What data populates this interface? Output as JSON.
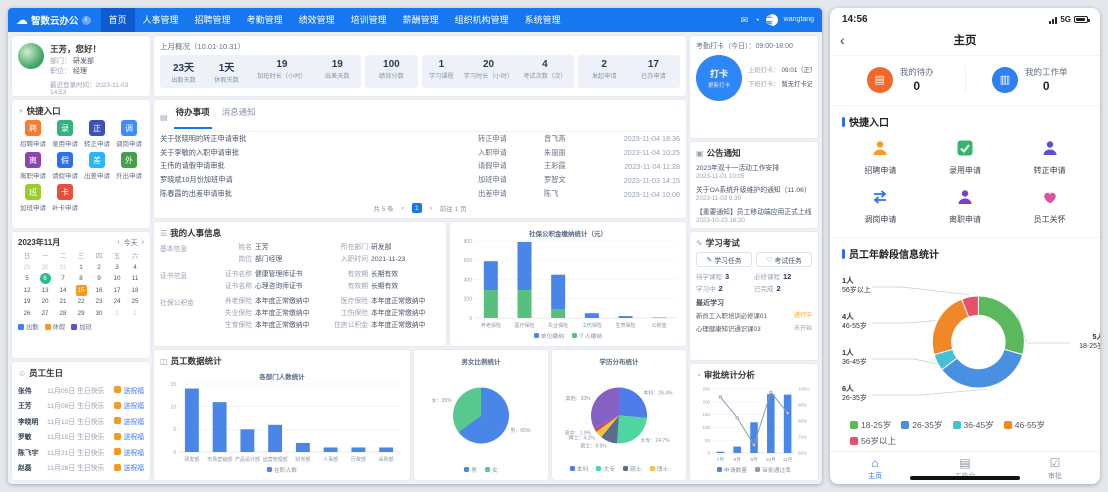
{
  "desktop": {
    "navbar": {
      "logo_icon": "☁",
      "logo_text": "智数云办公",
      "logo_badge": "i",
      "menu_items": [
        "首页",
        "人事管理",
        "招聘管理",
        "考勤管理",
        "绩效管理",
        "培训管理",
        "薪酬管理",
        "组织机构管理",
        "系统管理"
      ],
      "active_item": "首页",
      "user_name": "王芳",
      "user_account": "wangfang"
    },
    "profile": {
      "greeting": "王芳，您好！",
      "fields": [
        {
          "label": "部门：",
          "value": "研发部"
        },
        {
          "label": "职位：",
          "value": "经理"
        }
      ],
      "last_login_label": "最近登录时间：",
      "last_login_time": "2023-11-03 14:53"
    },
    "quick_entry": {
      "icon": "⚡",
      "title": "快捷入口",
      "items": [
        {
          "label": "招聘申请",
          "glyph": "聘",
          "color": "#f97b2f"
        },
        {
          "label": "录用申请",
          "glyph": "录",
          "color": "#34b37e"
        },
        {
          "label": "转正申请",
          "glyph": "正",
          "color": "#3f51b5"
        },
        {
          "label": "调岗申请",
          "glyph": "调",
          "color": "#3d8bff"
        },
        {
          "label": "离职申请",
          "glyph": "离",
          "color": "#8e44ad"
        },
        {
          "label": "请假申请",
          "glyph": "假",
          "color": "#2f6fed"
        },
        {
          "label": "出差申请",
          "glyph": "差",
          "color": "#29b6f6"
        },
        {
          "label": "外出申请",
          "glyph": "外",
          "color": "#43a047"
        },
        {
          "label": "加班申请",
          "glyph": "班",
          "color": "#9ccc2a"
        },
        {
          "label": "补卡申请",
          "glyph": "卡",
          "color": "#e64f3a"
        }
      ]
    },
    "calendar": {
      "month_label": "2023年11月",
      "prev": "‹",
      "today_label": "今天",
      "next": "›",
      "week_days": [
        "日",
        "一",
        "二",
        "三",
        "四",
        "五",
        "六"
      ],
      "weeks": [
        [
          29,
          30,
          31,
          1,
          2,
          3,
          4
        ],
        [
          5,
          6,
          7,
          8,
          9,
          10,
          11
        ],
        [
          12,
          13,
          14,
          15,
          16,
          17,
          18
        ],
        [
          19,
          20,
          21,
          22,
          23,
          24,
          25
        ],
        [
          26,
          27,
          28,
          29,
          30,
          1,
          2
        ]
      ],
      "highlight_green": 6,
      "highlight_orange": 15,
      "legend": [
        {
          "color": "#3d7fff",
          "label": "出勤"
        },
        {
          "color": "#f59a23",
          "label": "休假"
        },
        {
          "color": "#5b4fd6",
          "label": "加班"
        }
      ]
    },
    "birthdays": {
      "icon": "☺",
      "title": "员工生日",
      "wish_label": "送祝福",
      "rows": [
        {
          "name": "张伟",
          "date": "11月05日 生日快乐"
        },
        {
          "name": "王芳",
          "date": "11月08日 生日快乐"
        },
        {
          "name": "李晓明",
          "date": "11月12日 生日快乐"
        },
        {
          "name": "罗敏",
          "date": "11月15日 生日快乐"
        },
        {
          "name": "陈飞宇",
          "date": "11月21日 生日快乐"
        },
        {
          "name": "赵磊",
          "date": "11月26日 生日快乐"
        }
      ]
    },
    "summary": {
      "title": "上月概况（10.01-10.31）",
      "groups": [
        [
          {
            "value": "23天",
            "label": "出勤天数"
          },
          {
            "value": "1天",
            "label": "休假天数"
          },
          {
            "value": "19",
            "label": "加班时长（小时）"
          },
          {
            "value": "19",
            "label": "出差天数"
          }
        ],
        [
          {
            "value": "100",
            "label": "绩效分数"
          }
        ],
        [
          {
            "value": "1",
            "label": "学习课程"
          },
          {
            "value": "20",
            "label": "学习时长（小时）"
          },
          {
            "value": "4",
            "label": "考试次数（次）"
          }
        ],
        [
          {
            "value": "2",
            "label": "发起申请"
          },
          {
            "value": "17",
            "label": "已办申请"
          }
        ]
      ]
    },
    "todo": {
      "icon": "▤",
      "tabs": [
        "待办事项",
        "消息通知"
      ],
      "active_tab": "待办事项",
      "rows": [
        {
          "title": "关于张晓明的转正申请审批",
          "type": "转正申请",
          "person": "曾飞燕",
          "time": "2023-11-04 18:36"
        },
        {
          "title": "关于李敏的入职申请审批",
          "type": "入职申请",
          "person": "朱丽丽",
          "time": "2023-11-04 10:25"
        },
        {
          "title": "王伟的请假申请审批",
          "type": "请假申请",
          "person": "王彩霞",
          "time": "2023-11-04 11:28"
        },
        {
          "title": "罗晓斌10月份加班申请",
          "type": "加班申请",
          "person": "罗智文",
          "time": "2023-11-03 14:15"
        },
        {
          "title": "陈春霞的出差申请审批",
          "type": "出差申请",
          "person": "陈飞",
          "time": "2023-11-04 10:08"
        }
      ],
      "pagination": {
        "total": "共 5 条",
        "prev": "‹",
        "page": "1",
        "next": "›",
        "jump": "前往 1 页"
      }
    },
    "hr_info": {
      "icon": "☰",
      "title": "我的人事信息",
      "groups": [
        {
          "label": "基本信息",
          "rows": [
            [
              {
                "k": "姓名",
                "v": "王芳"
              },
              {
                "k": "所在部门",
                "v": "研发部"
              }
            ],
            [
              {
                "k": "岗位",
                "v": "部门经理"
              },
              {
                "k": "入职时间",
                "v": "2021-11-23"
              }
            ]
          ]
        },
        {
          "label": "证书信息",
          "rows": [
            [
              {
                "k": "证书名称",
                "v": "健康管理师证书"
              },
              {
                "k": "有效期",
                "v": "长期有效"
              }
            ],
            [
              {
                "k": "证书名称",
                "v": "心理咨询师证书"
              },
              {
                "k": "有效期",
                "v": "长期有效"
              }
            ]
          ]
        },
        {
          "label": "社保公积金",
          "rows": [
            [
              {
                "k": "养老保险",
                "v": "本年度正常缴纳中"
              },
              {
                "k": "医疗保险",
                "v": "本年度正常缴纳中"
              }
            ],
            [
              {
                "k": "失业保险",
                "v": "本年度正常缴纳中"
              },
              {
                "k": "工伤保险",
                "v": "本年度正常缴纳中"
              }
            ],
            [
              {
                "k": "生育保险",
                "v": "本年度正常缴纳中"
              },
              {
                "k": "住房公积金",
                "v": "本年度正常缴纳中"
              }
            ]
          ]
        }
      ]
    },
    "stats_card": {
      "icon": "◫",
      "title": "员工数据统计"
    },
    "attendance": {
      "title": "考勤打卡（今日）：09:00-18:00",
      "button_main": "打卡",
      "button_sub": "更新打卡",
      "rows": [
        {
          "label": "上班打卡：",
          "value": "09:01（正常）"
        },
        {
          "label": "下班打卡：",
          "value": "暂无打卡记录"
        }
      ]
    },
    "announcements": {
      "icon": "▣",
      "title": "公告通知",
      "items": [
        {
          "title": "2023年双十一活动工作安排",
          "time": "2023-11-01 10:05"
        },
        {
          "title": "关于OA系统升级维护的通知（11.06）",
          "time": "2023-11-03 9:30"
        },
        {
          "title": "【重要通知】员工移动端应用正式上线",
          "time": "2023-10-23 16:20"
        }
      ]
    },
    "study": {
      "icon": "✎",
      "title": "学习考试",
      "tabs": [
        {
          "icon": "✎",
          "label": "学习任务"
        },
        {
          "icon": "♡",
          "label": "考试任务"
        }
      ],
      "stats": [
        [
          {
            "k": "待学课程",
            "v": "3"
          },
          {
            "k": "必修课程",
            "v": "12"
          }
        ],
        [
          {
            "k": "学习中",
            "v": "2"
          },
          {
            "k": "已完成",
            "v": "2"
          }
        ]
      ],
      "recent_title": "最近学习",
      "items": [
        {
          "title": "新员工入职培训必修课01",
          "status": "进行中"
        },
        {
          "title": "心理健康知识通识课03",
          "status": "未开始"
        }
      ]
    },
    "approval_card": {
      "icon": "◔",
      "title": "审批统计分析"
    }
  },
  "mobile": {
    "status": {
      "time": "14:56",
      "network": "5G"
    },
    "nav": {
      "back": "‹",
      "title": "主页"
    },
    "stats": [
      {
        "label": "我的待办",
        "value": "0",
        "color": "#f2682a",
        "glyph": "▤"
      },
      {
        "label": "我的工作单",
        "value": "0",
        "color": "#2f80ed",
        "glyph": "▥"
      }
    ],
    "quick": {
      "title": "快捷入口",
      "items": [
        {
          "label": "招聘申请",
          "icon": "person",
          "color": "#f59a23"
        },
        {
          "label": "录用申请",
          "icon": "check",
          "color": "#35b56a"
        },
        {
          "label": "转正申请",
          "icon": "person",
          "color": "#5b4fd6"
        },
        {
          "label": "调岗申请",
          "icon": "swap",
          "color": "#2f6fed"
        },
        {
          "label": "离职申请",
          "icon": "person",
          "color": "#7a3fd0"
        },
        {
          "label": "员工关怀",
          "icon": "heart",
          "color": "#d8569f"
        }
      ]
    },
    "age_section_title": "员工年龄段信息统计",
    "tabbar": [
      {
        "icon": "⌂",
        "label": "主页",
        "active": true
      },
      {
        "icon": "▤",
        "label": "工作台",
        "active": false
      },
      {
        "icon": "☑",
        "label": "审批",
        "active": false
      }
    ]
  },
  "chart_data": [
    {
      "id": "insurance",
      "type": "bar",
      "stacked": true,
      "title": "社保公积金缴纳统计（元）",
      "categories": [
        "养老保险",
        "医疗保险",
        "失业保险",
        "工伤保险",
        "生育保险",
        "公积金"
      ],
      "series": [
        {
          "name": "单位缴纳",
          "color": "#4a86e8",
          "values": [
            300,
            500,
            360,
            50,
            20,
            5
          ]
        },
        {
          "name": "个人缴纳",
          "color": "#57c07d",
          "values": [
            290,
            290,
            90,
            0,
            0,
            0
          ]
        }
      ],
      "yticks": [
        0,
        200,
        400,
        600,
        800
      ],
      "ylim": [
        0,
        800
      ],
      "legend_position": "bottom"
    },
    {
      "id": "departments",
      "type": "bar",
      "title": "各部门人数统计",
      "categories": [
        "研发部",
        "市场营销部",
        "产品设计部",
        "运营管理部",
        "财务部",
        "人事部",
        "行政部",
        "采购部"
      ],
      "series": [
        {
          "name": "在职人数",
          "color": "#4a86e8",
          "values": [
            14,
            11,
            5,
            6,
            2,
            1,
            1,
            1
          ]
        }
      ],
      "yticks": [
        0,
        5,
        10,
        15
      ],
      "ylim": [
        0,
        15
      ],
      "legend_position": "bottom"
    },
    {
      "id": "gender",
      "type": "pie",
      "title": "男女比例统计",
      "slices": [
        {
          "name": "男",
          "value": 65,
          "color": "#4a86e8"
        },
        {
          "name": "女",
          "value": 35,
          "color": "#58c98e"
        }
      ],
      "legend_position": "bottom"
    },
    {
      "id": "education",
      "type": "pie",
      "title": "学历分布统计",
      "slices": [
        {
          "name": "本科",
          "value": 26.4,
          "color": "#4e7ce8"
        },
        {
          "name": "大专",
          "value": 24.7,
          "color": "#4fd6a0"
        },
        {
          "name": "硕士",
          "value": 9.9,
          "color": "#5b6d8c"
        },
        {
          "name": "博士",
          "value": 4.1,
          "color": "#f3c43a"
        },
        {
          "name": "高中",
          "value": 1.9,
          "color": "#d0455a"
        },
        {
          "name": "其他",
          "value": 33.0,
          "color": "#8561c5"
        }
      ],
      "legend_position": "bottom"
    },
    {
      "id": "approval",
      "type": "combo",
      "categories": [
        "7月",
        "8月",
        "9月",
        "10月",
        "11月"
      ],
      "bars": {
        "name": "申请数量",
        "color": "#4a86e8",
        "values": [
          5,
          25,
          120,
          230,
          228
        ]
      },
      "line": {
        "name": "审批通过率",
        "color": "#8d9bb3",
        "values": [
          95,
          82,
          65,
          98,
          85
        ]
      },
      "left_ticks": [
        0,
        50,
        100,
        150,
        200,
        250
      ],
      "right_ticks": [
        60,
        70,
        80,
        90,
        100
      ],
      "right_suffix": "%"
    },
    {
      "id": "age",
      "type": "donut",
      "title": "员工年龄段信息统计",
      "unit": "人",
      "slices": [
        {
          "name": "18-25岁",
          "value": 5,
          "color": "#5cb85c"
        },
        {
          "name": "26-35岁",
          "value": 6,
          "color": "#4a90e2"
        },
        {
          "name": "36-45岁",
          "value": 1,
          "color": "#45c0d6"
        },
        {
          "name": "46-55岁",
          "value": 4,
          "color": "#f0882a"
        },
        {
          "name": "56岁以上",
          "value": 1,
          "color": "#e8506a"
        }
      ],
      "callouts_left": [
        "56岁以上",
        "46-55岁",
        "36-45岁",
        "26-35岁"
      ],
      "callout_right": "18-25岁",
      "legend_position": "bottom"
    }
  ]
}
